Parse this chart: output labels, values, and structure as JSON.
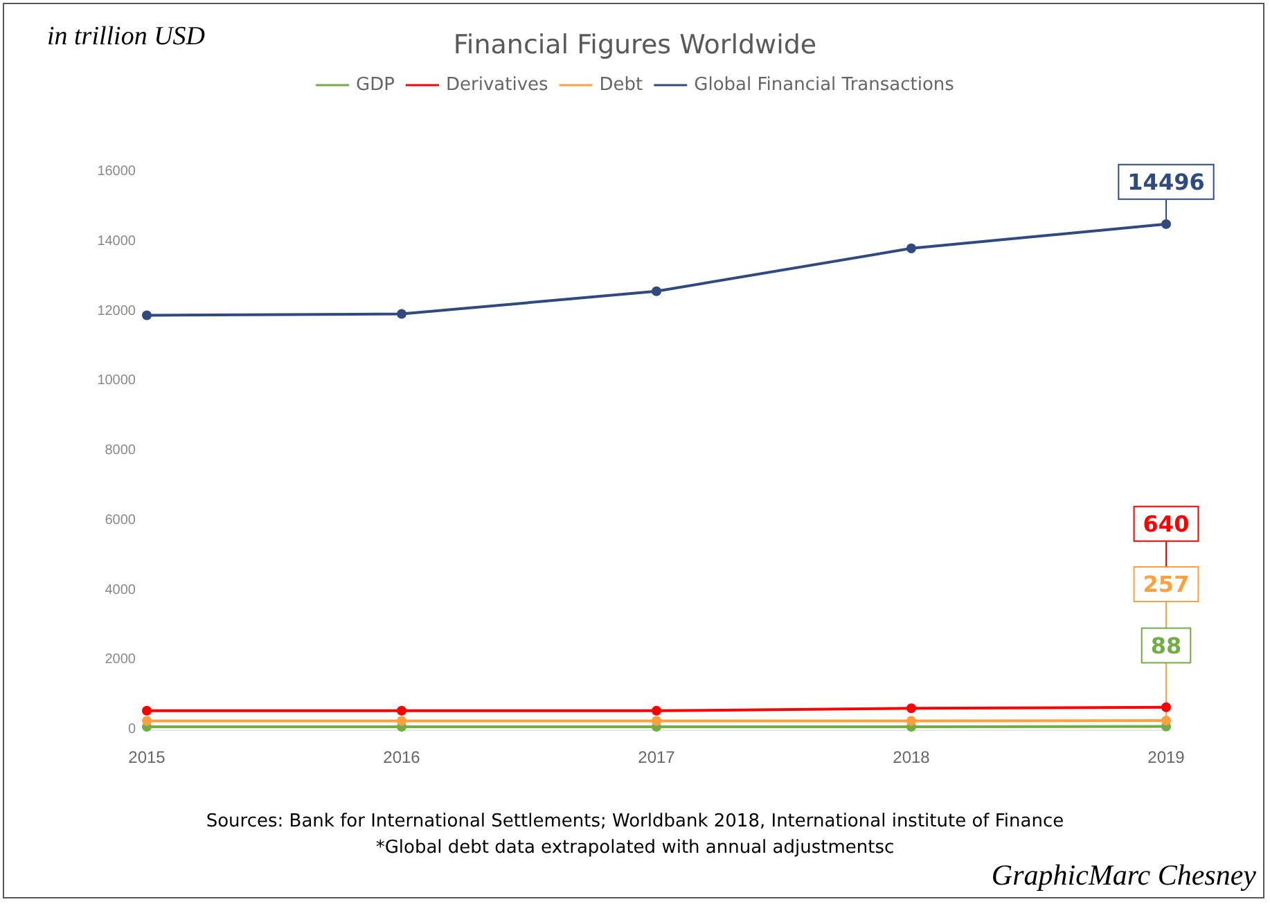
{
  "chart_data": {
    "type": "line",
    "title": "Financial Figures Worldwide",
    "ylabel": "in trillion USD",
    "categories": [
      "2015",
      "2016",
      "2017",
      "2018",
      "2019"
    ],
    "series": [
      {
        "name": "GDP",
        "color": "#70ad47",
        "values": [
          80,
          80,
          80,
          80,
          88
        ],
        "value_labels": [
          null,
          null,
          null,
          null,
          "88"
        ]
      },
      {
        "name": "Derivatives",
        "color": "#ff0000",
        "values": [
          540,
          540,
          540,
          610,
          640
        ],
        "value_labels": [
          null,
          null,
          null,
          null,
          "640"
        ]
      },
      {
        "name": "Debt",
        "color": "#ffa040",
        "values": [
          250,
          250,
          250,
          250,
          257
        ],
        "value_labels": [
          null,
          null,
          null,
          null,
          "257"
        ]
      },
      {
        "name": "Global Financial Transactions",
        "color": "#2f4a7f",
        "values": [
          11880,
          11920,
          12570,
          13800,
          14496
        ],
        "value_labels": [
          null,
          null,
          null,
          null,
          "14496"
        ]
      }
    ],
    "ylim": [
      0,
      16000
    ],
    "yticks": [
      0,
      2000,
      4000,
      6000,
      8000,
      10000,
      12000,
      14000,
      16000
    ],
    "grid": false,
    "legend": "top",
    "marker": "circle",
    "line_style": "solid",
    "annotations": [
      "Sources: Bank for International Settlements; Worldbank 2018, International institute of Finance",
      "*Global debt data extrapolated with annual adjustmentsc",
      "GraphicMarc Chesney"
    ]
  }
}
